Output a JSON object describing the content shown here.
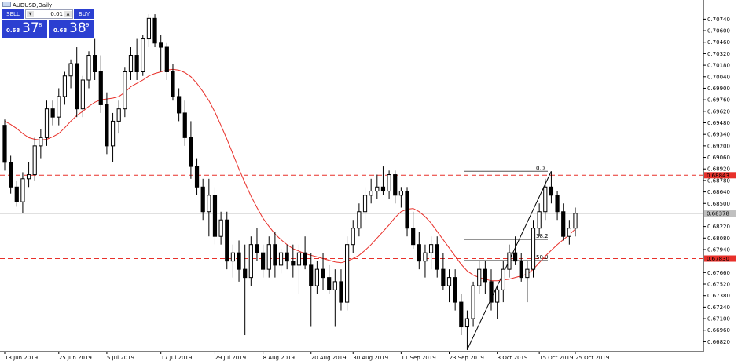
{
  "window": {
    "title": "AUDUSD,Daily"
  },
  "trade_panel": {
    "sell_label": "SELL",
    "buy_label": "BUY",
    "lot_value": "0.01",
    "sell_price_prefix": "0.68",
    "sell_price_big": "37",
    "sell_price_sup": "8",
    "buy_price_prefix": "0.68",
    "buy_price_big": "38",
    "buy_price_sup": "9"
  },
  "colors": {
    "grid_line": "#c0c0c0",
    "ma_line": "#e8302a",
    "level_line": "#e8302a",
    "level_label_bg": "#e8302a",
    "current_price_label_bg": "#c0c0c0",
    "panel_blue": "#2b3fd1"
  },
  "chart_data": {
    "type": "candlestick",
    "symbol": "AUDUSD",
    "timeframe": "Daily",
    "y_ticks": [
      "0.70740",
      "0.70600",
      "0.70460",
      "0.70320",
      "0.70180",
      "0.70040",
      "0.69900",
      "0.69760",
      "0.69620",
      "0.69480",
      "0.69340",
      "0.69200",
      "0.69060",
      "0.68920",
      "0.68780",
      "0.68640",
      "0.68500",
      "0.68220",
      "0.68080",
      "0.67940",
      "0.67660",
      "0.67520",
      "0.67380",
      "0.67240",
      "0.67100",
      "0.66960",
      "0.66820"
    ],
    "x_ticks": [
      "13 Jun 2019",
      "25 Jun 2019",
      "5 Jul 2019",
      "17 Jul 2019",
      "29 Jul 2019",
      "8 Aug 2019",
      "20 Aug 2019",
      "30 Aug 2019",
      "11 Sep 2019",
      "23 Sep 2019",
      "3 Oct 2019",
      "15 Oct 2019",
      "25 Oct 2019"
    ],
    "ylim": [
      0.667,
      0.7082
    ],
    "current_price": "0.68378",
    "horizontal_levels": [
      {
        "price": 0.68843,
        "label": "0.68843"
      },
      {
        "price": 0.6783,
        "label": "0.67830"
      }
    ],
    "fibonacci": {
      "high": 0.68891,
      "low": 0.66723,
      "labels": [
        "0.0",
        "38.2",
        "50.0"
      ]
    },
    "candles": [
      [
        0.6945,
        0.6952,
        0.689,
        0.69
      ],
      [
        0.69,
        0.6908,
        0.6862,
        0.687
      ],
      [
        0.687,
        0.6878,
        0.6846,
        0.6852
      ],
      [
        0.6852,
        0.6888,
        0.6838,
        0.688
      ],
      [
        0.688,
        0.69,
        0.687,
        0.6885
      ],
      [
        0.6885,
        0.693,
        0.6878,
        0.692
      ],
      [
        0.692,
        0.694,
        0.6905,
        0.693
      ],
      [
        0.693,
        0.6975,
        0.692,
        0.6965
      ],
      [
        0.6965,
        0.6975,
        0.6945,
        0.6955
      ],
      [
        0.6955,
        0.699,
        0.6945,
        0.698
      ],
      [
        0.698,
        0.701,
        0.697,
        0.7005
      ],
      [
        0.7005,
        0.7025,
        0.699,
        0.702
      ],
      [
        0.702,
        0.704,
        0.6955,
        0.6965
      ],
      [
        0.6965,
        0.7005,
        0.6955,
        0.7
      ],
      [
        0.7,
        0.7035,
        0.699,
        0.703
      ],
      [
        0.703,
        0.705,
        0.7,
        0.701
      ],
      [
        0.701,
        0.703,
        0.696,
        0.697
      ],
      [
        0.697,
        0.6985,
        0.691,
        0.692
      ],
      [
        0.692,
        0.696,
        0.69,
        0.695
      ],
      [
        0.695,
        0.6975,
        0.6935,
        0.6965
      ],
      [
        0.6965,
        0.7015,
        0.6955,
        0.701
      ],
      [
        0.701,
        0.704,
        0.7,
        0.703
      ],
      [
        0.703,
        0.705,
        0.7,
        0.701
      ],
      [
        0.701,
        0.7055,
        0.7005,
        0.705
      ],
      [
        0.705,
        0.708,
        0.704,
        0.7075
      ],
      [
        0.7075,
        0.708,
        0.704,
        0.7045
      ],
      [
        0.7045,
        0.7055,
        0.701,
        0.704
      ],
      [
        0.704,
        0.7045,
        0.7,
        0.701
      ],
      [
        0.701,
        0.702,
        0.6975,
        0.698
      ],
      [
        0.698,
        0.699,
        0.695,
        0.696
      ],
      [
        0.696,
        0.6975,
        0.692,
        0.693
      ],
      [
        0.693,
        0.695,
        0.688,
        0.6895
      ],
      [
        0.6895,
        0.6905,
        0.686,
        0.687
      ],
      [
        0.687,
        0.688,
        0.683,
        0.684
      ],
      [
        0.684,
        0.688,
        0.681,
        0.686
      ],
      [
        0.686,
        0.687,
        0.68,
        0.681
      ],
      [
        0.681,
        0.684,
        0.68,
        0.683
      ],
      [
        0.683,
        0.684,
        0.677,
        0.678
      ],
      [
        0.678,
        0.68,
        0.676,
        0.679
      ],
      [
        0.679,
        0.6805,
        0.6755,
        0.677
      ],
      [
        0.677,
        0.68,
        0.669,
        0.676
      ],
      [
        0.676,
        0.681,
        0.675,
        0.68
      ],
      [
        0.68,
        0.682,
        0.678,
        0.679
      ],
      [
        0.679,
        0.68,
        0.676,
        0.677
      ],
      [
        0.677,
        0.681,
        0.676,
        0.68
      ],
      [
        0.68,
        0.6815,
        0.676,
        0.6775
      ],
      [
        0.6775,
        0.6795,
        0.6765,
        0.679
      ],
      [
        0.679,
        0.68,
        0.677,
        0.678
      ],
      [
        0.678,
        0.68,
        0.676,
        0.6775
      ],
      [
        0.6775,
        0.68,
        0.674,
        0.679
      ],
      [
        0.679,
        0.681,
        0.677,
        0.6775
      ],
      [
        0.6775,
        0.679,
        0.67,
        0.675
      ],
      [
        0.675,
        0.678,
        0.674,
        0.677
      ],
      [
        0.677,
        0.679,
        0.6745,
        0.676
      ],
      [
        0.676,
        0.6775,
        0.674,
        0.6745
      ],
      [
        0.6745,
        0.677,
        0.67,
        0.6755
      ],
      [
        0.6755,
        0.677,
        0.672,
        0.673
      ],
      [
        0.673,
        0.681,
        0.672,
        0.68
      ],
      [
        0.68,
        0.683,
        0.679,
        0.682
      ],
      [
        0.682,
        0.685,
        0.681,
        0.684
      ],
      [
        0.684,
        0.687,
        0.683,
        0.686
      ],
      [
        0.686,
        0.688,
        0.685,
        0.6865
      ],
      [
        0.6865,
        0.6885,
        0.6855,
        0.687
      ],
      [
        0.687,
        0.6895,
        0.686,
        0.6865
      ],
      [
        0.6865,
        0.689,
        0.6855,
        0.6885
      ],
      [
        0.6885,
        0.689,
        0.685,
        0.686
      ],
      [
        0.686,
        0.687,
        0.6845,
        0.6865
      ],
      [
        0.6865,
        0.687,
        0.681,
        0.682
      ],
      [
        0.682,
        0.684,
        0.6795,
        0.68
      ],
      [
        0.68,
        0.6815,
        0.677,
        0.678
      ],
      [
        0.678,
        0.68,
        0.676,
        0.679
      ],
      [
        0.679,
        0.681,
        0.677,
        0.68
      ],
      [
        0.68,
        0.681,
        0.676,
        0.677
      ],
      [
        0.677,
        0.679,
        0.6745,
        0.675
      ],
      [
        0.675,
        0.677,
        0.673,
        0.676
      ],
      [
        0.676,
        0.677,
        0.672,
        0.673
      ],
      [
        0.673,
        0.674,
        0.669,
        0.67
      ],
      [
        0.67,
        0.672,
        0.6672,
        0.671
      ],
      [
        0.671,
        0.6755,
        0.67,
        0.675
      ],
      [
        0.675,
        0.678,
        0.674,
        0.677
      ],
      [
        0.677,
        0.678,
        0.674,
        0.6755
      ],
      [
        0.6755,
        0.677,
        0.672,
        0.673
      ],
      [
        0.673,
        0.675,
        0.671,
        0.6745
      ],
      [
        0.6745,
        0.678,
        0.673,
        0.677
      ],
      [
        0.677,
        0.68,
        0.676,
        0.679
      ],
      [
        0.679,
        0.681,
        0.6775,
        0.678
      ],
      [
        0.678,
        0.679,
        0.6755,
        0.676
      ],
      [
        0.676,
        0.678,
        0.673,
        0.677
      ],
      [
        0.677,
        0.683,
        0.676,
        0.682
      ],
      [
        0.682,
        0.685,
        0.681,
        0.684
      ],
      [
        0.684,
        0.688,
        0.683,
        0.687
      ],
      [
        0.687,
        0.6889,
        0.685,
        0.686
      ],
      [
        0.686,
        0.6865,
        0.683,
        0.684
      ],
      [
        0.684,
        0.685,
        0.6805,
        0.681
      ],
      [
        0.681,
        0.683,
        0.68,
        0.682
      ],
      [
        0.682,
        0.6845,
        0.681,
        0.6838
      ]
    ],
    "ma_values": [
      0.695,
      0.6946,
      0.6941,
      0.6935,
      0.693,
      0.6928,
      0.6927,
      0.6928,
      0.6931,
      0.6935,
      0.6942,
      0.695,
      0.6957,
      0.6962,
      0.6968,
      0.6973,
      0.6976,
      0.6977,
      0.6978,
      0.698,
      0.6985,
      0.6992,
      0.6996,
      0.7,
      0.7005,
      0.7008,
      0.701,
      0.7012,
      0.7013,
      0.7012,
      0.7009,
      0.7004,
      0.6996,
      0.6986,
      0.6975,
      0.6961,
      0.6945,
      0.6928,
      0.691,
      0.6892,
      0.6875,
      0.6859,
      0.6845,
      0.6832,
      0.6822,
      0.6813,
      0.6806,
      0.68,
      0.6795,
      0.6792,
      0.6789,
      0.6787,
      0.6785,
      0.6783,
      0.6781,
      0.6779,
      0.6778,
      0.678,
      0.6783,
      0.6787,
      0.6793,
      0.68,
      0.6808,
      0.6816,
      0.6824,
      0.6833,
      0.684,
      0.6843,
      0.6844,
      0.684,
      0.6834,
      0.6826,
      0.6816,
      0.6806,
      0.6796,
      0.6786,
      0.6776,
      0.6768,
      0.6763,
      0.676,
      0.6758,
      0.6756,
      0.6756,
      0.6757,
      0.6758,
      0.676,
      0.6762,
      0.6764,
      0.677,
      0.6778,
      0.6786,
      0.6793,
      0.68,
      0.6806,
      0.6812,
      0.6819
    ]
  }
}
